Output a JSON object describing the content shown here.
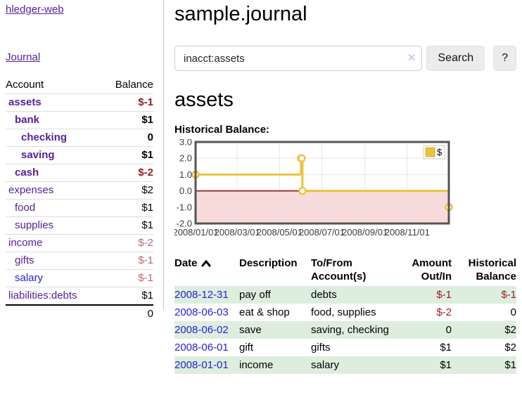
{
  "colors": {
    "accent_purple": "#552299",
    "link_blue": "#2222dd",
    "negative_red": "#951b1b",
    "negative_muted": "#bb6868",
    "row_shade_green": "#deeede",
    "chart_line_yellow": "#edc240",
    "chart_fill_pink": "#f8dada",
    "chart_zero_line": "#8b0000",
    "chart_border": "#545454",
    "chart_grid": "#e5e5e5"
  },
  "sidebar": {
    "app_title": "hledger-web",
    "nav": {
      "journal": "Journal"
    },
    "table": {
      "headers": {
        "account": "Account",
        "balance": "Balance"
      },
      "rows": [
        {
          "account": "assets",
          "depth": 1,
          "in_account_filter": true,
          "blue": false,
          "balance": "$-1"
        },
        {
          "account": "bank",
          "depth": 2,
          "in_account_filter": true,
          "blue": false,
          "balance": "$1"
        },
        {
          "account": "checking",
          "depth": 3,
          "in_account_filter": true,
          "blue": false,
          "balance": "0"
        },
        {
          "account": "saving",
          "depth": 3,
          "in_account_filter": true,
          "blue": false,
          "balance": "$1"
        },
        {
          "account": "cash",
          "depth": 2,
          "in_account_filter": true,
          "blue": false,
          "balance": "$-2"
        },
        {
          "account": "expenses",
          "depth": 1,
          "in_account_filter": false,
          "blue": false,
          "balance": "$2"
        },
        {
          "account": "food",
          "depth": 2,
          "in_account_filter": false,
          "blue": false,
          "balance": "$1"
        },
        {
          "account": "supplies",
          "depth": 2,
          "in_account_filter": false,
          "blue": false,
          "balance": "$1"
        },
        {
          "account": "income",
          "depth": 1,
          "in_account_filter": false,
          "blue": false,
          "balance": "$-2"
        },
        {
          "account": "gifts",
          "depth": 2,
          "in_account_filter": false,
          "blue": false,
          "balance": "$-1"
        },
        {
          "account": "salary",
          "depth": 2,
          "in_account_filter": false,
          "blue": true,
          "balance": "$-1"
        },
        {
          "account": "liabilities:debts",
          "depth": 1,
          "in_account_filter": false,
          "blue": false,
          "balance": "$1"
        }
      ],
      "total": "0"
    }
  },
  "header": {
    "title": "sample.journal"
  },
  "search": {
    "value": "inacct:assets",
    "placeholder": "",
    "clear_icon": "✕",
    "search_label": "Search",
    "help_label": "?"
  },
  "account_page": {
    "title": "assets",
    "chart_label": "Historical Balance:"
  },
  "chart_data": {
    "type": "line",
    "step": true,
    "title": "Historical Balance",
    "legend": [
      {
        "label": "$",
        "color": "#edc240"
      }
    ],
    "legend_position": "top-right",
    "series": [
      {
        "name": "$",
        "points": [
          [
            "2008-01-01",
            1
          ],
          [
            "2008-06-01",
            2
          ],
          [
            "2008-06-02",
            2
          ],
          [
            "2008-06-03",
            0
          ],
          [
            "2008-12-31",
            -1
          ]
        ]
      }
    ],
    "xrange": [
      "2008-01-01",
      "2008-12-31"
    ],
    "xticks": [
      "2008/01/01",
      "2008/03/01",
      "2008/05/01",
      "2008/07/01",
      "2008/09/01",
      "2008/11/01"
    ],
    "ylim": [
      -2.0,
      3.0
    ],
    "yticks": [
      3.0,
      2.0,
      1.0,
      0.0,
      -1.0,
      -2.0
    ],
    "grid": true,
    "negative_region_shaded": true
  },
  "register": {
    "headers": {
      "date": {
        "l1": "Date",
        "l2": ""
      },
      "desc": {
        "l1": "Description",
        "l2": ""
      },
      "accounts": {
        "l1": "To/From",
        "l2": "Account(s)"
      },
      "amount": {
        "l1": "Amount",
        "l2": "Out/In"
      },
      "balance": {
        "l1": "Historical",
        "l2": "Balance"
      }
    },
    "rows": [
      {
        "date": "2008-12-31",
        "description": "pay off",
        "accounts": "debts",
        "amount": "$-1",
        "balance": "$-1"
      },
      {
        "date": "2008-06-03",
        "description": "eat & shop",
        "accounts": "food, supplies",
        "amount": "$-2",
        "balance": "0"
      },
      {
        "date": "2008-06-02",
        "description": "save",
        "accounts": "saving, checking",
        "amount": "0",
        "balance": "$2"
      },
      {
        "date": "2008-06-01",
        "description": "gift",
        "accounts": "gifts",
        "amount": "$1",
        "balance": "$2"
      },
      {
        "date": "2008-01-01",
        "description": "income",
        "accounts": "salary",
        "amount": "$1",
        "balance": "$1"
      }
    ]
  }
}
